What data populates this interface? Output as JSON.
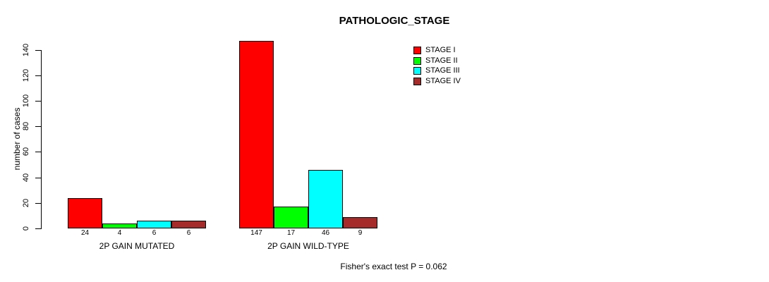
{
  "chart_data": {
    "type": "bar",
    "title": "PATHOLOGIC_STAGE",
    "ylabel": "number of cases",
    "xlabel": "",
    "categories": [
      "2P GAIN MUTATED",
      "2P GAIN WILD-TYPE"
    ],
    "series": [
      {
        "name": "STAGE I",
        "color": "#FF0000",
        "values": [
          24,
          147
        ]
      },
      {
        "name": "STAGE II",
        "color": "#00FF00",
        "values": [
          4,
          17
        ]
      },
      {
        "name": "STAGE III",
        "color": "#00FFFF",
        "values": [
          6,
          46
        ]
      },
      {
        "name": "STAGE IV",
        "color": "#A52A2A",
        "values": [
          6,
          9
        ]
      }
    ],
    "yticks": [
      0,
      20,
      40,
      60,
      80,
      100,
      120,
      140
    ],
    "ylim": [
      0,
      150
    ],
    "grid": false,
    "legend": {
      "position": "top-right",
      "entries": [
        "STAGE I",
        "STAGE II",
        "STAGE III",
        "STAGE IV"
      ]
    },
    "annotation": "Fisher's exact test P = 0.062"
  },
  "colors": {
    "background": "#FFFFFF",
    "axis": "#000000",
    "text": "#000000"
  }
}
